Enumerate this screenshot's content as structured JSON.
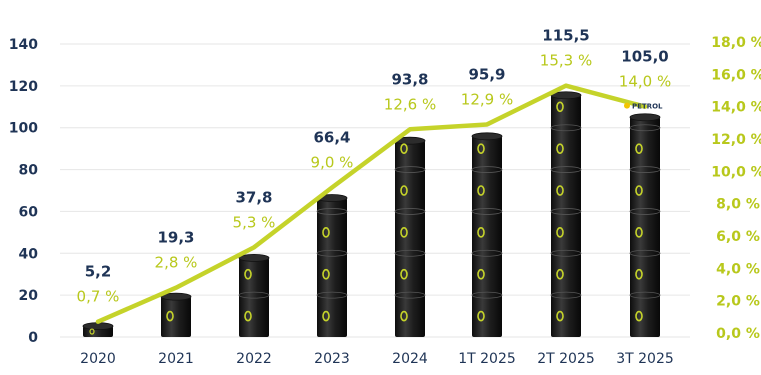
{
  "chart_data": {
    "type": "bar",
    "categories": [
      "2020",
      "2021",
      "2022",
      "2023",
      "2024",
      "1T 2025",
      "2T 2025",
      "3T 2025"
    ],
    "series": [
      {
        "values": [
          5.2,
          19.3,
          37.8,
          66.4,
          93.8,
          95.9,
          115.5,
          105.0
        ],
        "labels": [
          "5,2",
          "19,3",
          "37,8",
          "66,4",
          "93,8",
          "95,9",
          "115,5",
          "105,0"
        ],
        "axis": "left",
        "kind": "bar",
        "color": "#1a1a1a"
      },
      {
        "values": [
          0.7,
          2.8,
          5.3,
          9.0,
          12.6,
          12.9,
          15.3,
          14.0
        ],
        "labels": [
          "0,7 %",
          "2,8 %",
          "5,3 %",
          "9,0 %",
          "12,6 %",
          "12,9 %",
          "15,3 %",
          "14,0 %"
        ],
        "axis": "right",
        "kind": "line",
        "color": "#c5d32a"
      }
    ],
    "y_left": {
      "range": [
        0,
        140
      ],
      "ticks": [
        "0",
        "20",
        "40",
        "60",
        "80",
        "100",
        "120",
        "140"
      ],
      "color": "#1f3456"
    },
    "y_right": {
      "range": [
        0,
        18
      ],
      "ticks": [
        "0,0 %",
        "2,0 %",
        "4,0 %",
        "6,0 %",
        "8,0 %",
        "10,0 %",
        "12,0 %",
        "14,0 %",
        "16,0 %",
        "18,0 %"
      ],
      "color": "#b8c81c"
    },
    "grid": true,
    "logo_text": "PETROL"
  }
}
